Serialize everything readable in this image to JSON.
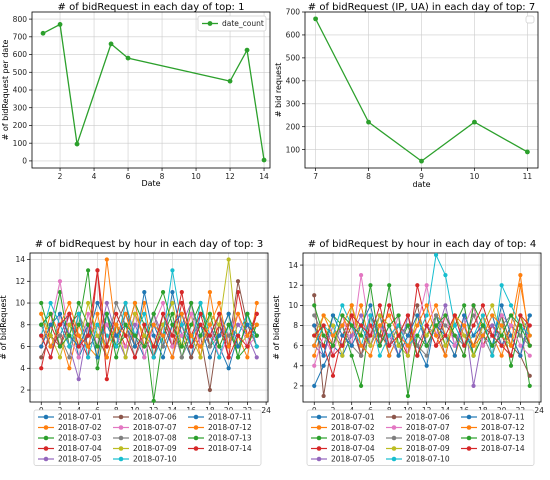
{
  "chart_data": [
    {
      "type": "line",
      "title": "# of bidRequest in each day of top: 1",
      "xlabel": "Date",
      "ylabel": "# of bidRequest per date",
      "xlim": [
        0.35,
        14.35
      ],
      "ylim": [
        -40,
        840
      ],
      "xticks": [
        2,
        4,
        6,
        8,
        10,
        12,
        14
      ],
      "yticks": [
        0,
        100,
        200,
        300,
        400,
        500,
        600,
        700,
        800
      ],
      "grid": true,
      "legend": "top-right",
      "series": [
        {
          "name": "date_count",
          "color": "#2ca02c",
          "x": [
            1,
            2,
            3,
            5,
            6,
            12,
            13,
            14
          ],
          "y": [
            720,
            770,
            95,
            660,
            580,
            450,
            625,
            5
          ]
        }
      ]
    },
    {
      "type": "line",
      "title": "# of bidRequest (IP, UA) in each day of top: 7",
      "xlabel": "date",
      "ylabel": "# bid request",
      "xlim": [
        6.8,
        11.2
      ],
      "ylim": [
        20,
        700
      ],
      "xticks": [
        7,
        8,
        9,
        10,
        11
      ],
      "yticks": [
        100,
        200,
        300,
        400,
        500,
        600,
        700
      ],
      "grid": true,
      "legend": "top-right",
      "series": [
        {
          "color": "#2ca02c",
          "x": [
            7,
            8,
            9,
            10,
            11
          ],
          "y": [
            670,
            220,
            50,
            220,
            90
          ]
        }
      ]
    },
    {
      "type": "line",
      "title": "# of bidRequest by hour in each day of top: 3",
      "xlabel": "",
      "ylabel": "# of bidRequest",
      "xlim": [
        -1.2,
        24.2
      ],
      "ylim": [
        0.9,
        14.6
      ],
      "xticks": [
        0,
        2,
        4,
        6,
        8,
        10,
        12,
        14,
        16,
        18,
        20,
        22,
        24
      ],
      "yticks": [
        2,
        4,
        6,
        8,
        10,
        12,
        14
      ],
      "grid": true,
      "legend": "bottom",
      "series": [
        {
          "name": "2018-07-01",
          "color": "#1f77b4",
          "y": [
            8,
            6,
            7,
            9,
            5,
            7,
            10,
            8,
            6,
            9,
            7,
            5,
            8,
            6,
            11,
            7,
            5,
            9,
            8,
            6,
            4,
            7,
            9,
            6
          ]
        },
        {
          "name": "2018-07-02",
          "color": "#ff7f0e",
          "y": [
            6,
            9,
            7,
            4,
            8,
            6,
            5,
            14,
            7,
            9,
            6,
            10,
            5,
            8,
            7,
            6,
            9,
            5,
            11,
            6,
            8,
            7,
            5,
            10
          ]
        },
        {
          "name": "2018-07-03",
          "color": "#2ca02c",
          "y": [
            10,
            7,
            11,
            6,
            8,
            13,
            4,
            9,
            6,
            7,
            10,
            8,
            1,
            7,
            9,
            5,
            8,
            10,
            6,
            7,
            9,
            5,
            6,
            8
          ]
        },
        {
          "name": "2018-07-04",
          "color": "#d62728",
          "y": [
            4,
            8,
            6,
            9,
            7,
            5,
            13,
            3,
            8,
            6,
            9,
            7,
            5,
            8,
            6,
            10,
            7,
            9,
            6,
            8,
            5,
            11,
            7,
            9
          ]
        },
        {
          "name": "2018-07-05",
          "color": "#9467bd",
          "y": [
            7,
            5,
            9,
            6,
            3,
            8,
            6,
            10,
            7,
            5,
            8,
            6,
            9,
            7,
            5,
            8,
            10,
            6,
            7,
            9,
            6,
            8,
            7,
            5
          ]
        },
        {
          "name": "2018-07-06",
          "color": "#8c564b",
          "y": [
            5,
            7,
            6,
            8,
            9,
            6,
            7,
            5,
            8,
            10,
            6,
            7,
            5,
            9,
            6,
            8,
            5,
            7,
            2,
            8,
            6,
            12,
            8,
            6
          ]
        },
        {
          "name": "2018-07-07",
          "color": "#e377c2",
          "y": [
            6,
            8,
            12,
            7,
            5,
            9,
            6,
            8,
            7,
            6,
            9,
            5,
            8,
            10,
            6,
            7,
            9,
            6,
            8,
            5,
            7,
            9,
            6,
            7
          ]
        },
        {
          "name": "2018-07-08",
          "color": "#7f7f7f",
          "y": [
            8,
            6,
            7,
            5,
            9,
            7,
            8,
            6,
            10,
            8,
            5,
            7,
            9,
            6,
            8,
            5,
            7,
            8,
            6,
            9,
            7,
            6,
            8,
            7
          ]
        },
        {
          "name": "2018-07-09",
          "color": "#bcbd22",
          "y": [
            9,
            7,
            5,
            8,
            6,
            10,
            7,
            6,
            8,
            5,
            9,
            7,
            6,
            8,
            10,
            6,
            7,
            5,
            9,
            8,
            14,
            6,
            7,
            8
          ]
        },
        {
          "name": "2018-07-10",
          "color": "#17becf",
          "y": [
            7,
            10,
            8,
            6,
            9,
            5,
            8,
            7,
            6,
            10,
            7,
            9,
            5,
            7,
            13,
            8,
            6,
            10,
            7,
            5,
            8,
            7,
            9,
            6
          ]
        },
        {
          "name": "2018-07-11",
          "color": "#1f77b4",
          "y": [
            6,
            8,
            9,
            7,
            6,
            8,
            5,
            9,
            7,
            8,
            6,
            11,
            7,
            5,
            8,
            9,
            6,
            8,
            5,
            7,
            9,
            6,
            8,
            7
          ]
        },
        {
          "name": "2018-07-12",
          "color": "#ff7f0e",
          "y": [
            9,
            6,
            8,
            10,
            7,
            6,
            9,
            5,
            8,
            7,
            10,
            6,
            8,
            7,
            5,
            9,
            7,
            6,
            8,
            10,
            6,
            9,
            7,
            8
          ]
        },
        {
          "name": "2018-07-13",
          "color": "#2ca02c",
          "y": [
            8,
            9,
            6,
            7,
            10,
            8,
            6,
            9,
            5,
            8,
            7,
            6,
            9,
            11,
            8,
            6,
            10,
            7,
            9,
            6,
            8,
            5,
            9,
            7
          ]
        },
        {
          "name": "2018-07-14",
          "color": "#d62728",
          "y": [
            7,
            5,
            8,
            9,
            6,
            7,
            13,
            6,
            9,
            7,
            5,
            8,
            6,
            9,
            7,
            11,
            6,
            8,
            7,
            9,
            5,
            7,
            6,
            9
          ]
        }
      ]
    },
    {
      "type": "line",
      "title": "# of bidRequest by hour in each day of top: 4",
      "xlabel": "",
      "ylabel": "# of bidRequest",
      "xlim": [
        -1.2,
        24.2
      ],
      "ylim": [
        0.4,
        15.2
      ],
      "xticks": [
        0,
        2,
        4,
        6,
        8,
        10,
        12,
        14,
        16,
        18,
        20,
        22,
        24
      ],
      "yticks": [
        2,
        4,
        6,
        8,
        10,
        12,
        14
      ],
      "grid": true,
      "legend": "bottom",
      "series": [
        {
          "name": "2018-07-01",
          "color": "#1f77b4",
          "y": [
            2,
            4,
            6,
            5,
            7,
            8,
            6,
            9,
            5,
            7,
            8,
            6,
            4,
            9,
            7,
            6,
            8,
            5,
            7,
            9,
            6,
            8,
            7,
            9
          ]
        },
        {
          "name": "2018-07-02",
          "color": "#ff7f0e",
          "y": [
            5,
            8,
            6,
            9,
            7,
            10,
            6,
            8,
            5,
            7,
            9,
            6,
            8,
            10,
            7,
            5,
            8,
            6,
            9,
            7,
            5,
            8,
            13,
            6
          ]
        },
        {
          "name": "2018-07-03",
          "color": "#2ca02c",
          "y": [
            7,
            6,
            9,
            8,
            5,
            2,
            9,
            7,
            12,
            6,
            8,
            5,
            7,
            9,
            6,
            8,
            10,
            5,
            7,
            6,
            9,
            4,
            8,
            2
          ]
        },
        {
          "name": "2018-07-04",
          "color": "#d62728",
          "y": [
            8,
            6,
            3,
            7,
            9,
            5,
            8,
            6,
            10,
            7,
            5,
            12,
            8,
            6,
            9,
            7,
            5,
            10,
            6,
            8,
            7,
            5,
            9,
            6
          ]
        },
        {
          "name": "2018-07-05",
          "color": "#9467bd",
          "y": [
            6,
            5,
            8,
            6,
            7,
            9,
            6,
            8,
            7,
            5,
            9,
            6,
            8,
            7,
            10,
            6,
            9,
            2,
            7,
            8,
            6,
            7,
            5,
            8
          ]
        },
        {
          "name": "2018-07-06",
          "color": "#8c564b",
          "y": [
            11,
            1,
            7,
            6,
            8,
            5,
            9,
            7,
            6,
            8,
            7,
            10,
            6,
            8,
            5,
            9,
            7,
            6,
            8,
            7,
            9,
            6,
            5,
            3
          ]
        },
        {
          "name": "2018-07-07",
          "color": "#e377c2",
          "y": [
            4,
            7,
            5,
            9,
            6,
            13,
            7,
            8,
            6,
            9,
            5,
            8,
            12,
            7,
            9,
            6,
            8,
            10,
            6,
            7,
            9,
            8,
            6,
            5
          ]
        },
        {
          "name": "2018-07-08",
          "color": "#7f7f7f",
          "y": [
            9,
            7,
            6,
            8,
            6,
            5,
            7,
            9,
            6,
            8,
            7,
            6,
            5,
            9,
            8,
            7,
            6,
            9,
            7,
            5,
            8,
            9,
            7,
            6
          ]
        },
        {
          "name": "2018-07-09",
          "color": "#bcbd22",
          "y": [
            7,
            9,
            8,
            5,
            10,
            7,
            6,
            9,
            8,
            6,
            5,
            9,
            7,
            8,
            6,
            9,
            7,
            5,
            8,
            10,
            7,
            6,
            9,
            7
          ]
        },
        {
          "name": "2018-07-10",
          "color": "#17becf",
          "y": [
            6,
            8,
            7,
            10,
            8,
            6,
            9,
            5,
            7,
            8,
            6,
            7,
            9,
            15,
            13,
            8,
            6,
            7,
            9,
            5,
            12,
            10,
            8,
            7
          ]
        },
        {
          "name": "2018-07-11",
          "color": "#1f77b4",
          "y": [
            8,
            5,
            9,
            7,
            6,
            8,
            10,
            6,
            8,
            5,
            7,
            9,
            6,
            8,
            7,
            5,
            9,
            7,
            8,
            6,
            10,
            7,
            5,
            9
          ]
        },
        {
          "name": "2018-07-12",
          "color": "#ff7f0e",
          "y": [
            6,
            9,
            7,
            8,
            10,
            6,
            5,
            8,
            9,
            7,
            6,
            8,
            10,
            7,
            5,
            9,
            8,
            6,
            7,
            9,
            8,
            6,
            12,
            7
          ]
        },
        {
          "name": "2018-07-13",
          "color": "#2ca02c",
          "y": [
            10,
            7,
            6,
            9,
            8,
            7,
            12,
            6,
            8,
            9,
            1,
            7,
            6,
            8,
            9,
            7,
            5,
            10,
            8,
            6,
            7,
            9,
            8,
            6
          ]
        },
        {
          "name": "2018-07-14",
          "color": "#d62728",
          "y": [
            7,
            8,
            5,
            6,
            9,
            8,
            7,
            10,
            6,
            7,
            9,
            5,
            8,
            6,
            7,
            9,
            6,
            8,
            10,
            7,
            6,
            5,
            9,
            8
          ]
        }
      ]
    }
  ]
}
